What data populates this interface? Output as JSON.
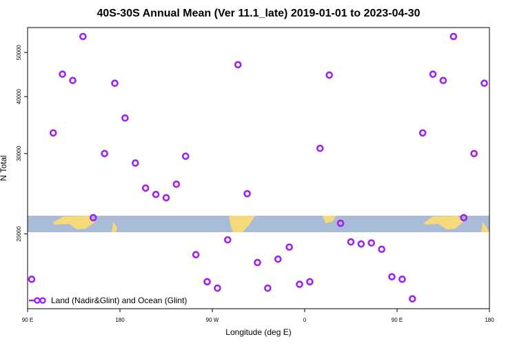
{
  "chart_data": {
    "type": "scatter",
    "title": "40S-30S Annual Mean (Ver 11.1_late)   2019-01-01 to 2023-04-30",
    "x_label": "Longitude (deg E)",
    "y_label": "N Total",
    "y_scale": "log",
    "legend": "bottom-left",
    "xlim": [
      90,
      540
    ],
    "ylim": [
      13700,
      56700
    ],
    "xticks": [
      {
        "value": 90,
        "label": "90 E"
      },
      180,
      {
        "value": 270,
        "label": "90 W"
      },
      {
        "value": 360,
        "label": "0"
      },
      {
        "value": 450,
        "label": "90 E"
      },
      {
        "value": 540,
        "label": "180"
      }
    ],
    "yticks": [
      20000,
      30000,
      40000,
      50000
    ],
    "series": [
      {
        "name": "Land (Nadir&Glint) and Ocean (Glint)",
        "color": "#a020f0",
        "x": [
          94,
          115,
          124,
          134,
          144,
          154,
          165,
          175,
          185,
          195,
          205,
          215,
          225,
          235,
          244,
          254,
          265,
          275,
          285,
          295,
          304,
          314,
          324,
          334,
          345,
          355,
          365,
          375,
          384,
          395,
          405,
          415,
          425,
          435,
          445,
          455,
          465,
          475,
          485,
          495,
          505,
          515,
          525,
          535
        ],
        "values": [
          15900,
          33300,
          44800,
          43400,
          54200,
          21700,
          30000,
          42800,
          35900,
          28600,
          25200,
          24400,
          24000,
          25700,
          29600,
          18000,
          15700,
          15200,
          19400,
          47000,
          24500,
          17300,
          15200,
          17600,
          18700,
          15500,
          15700,
          30800,
          44600,
          21100,
          19200,
          19000,
          19100,
          18500,
          16100,
          15900,
          14400,
          33300,
          44800,
          43400,
          54200,
          21700,
          30000,
          42800
        ]
      }
    ]
  }
}
